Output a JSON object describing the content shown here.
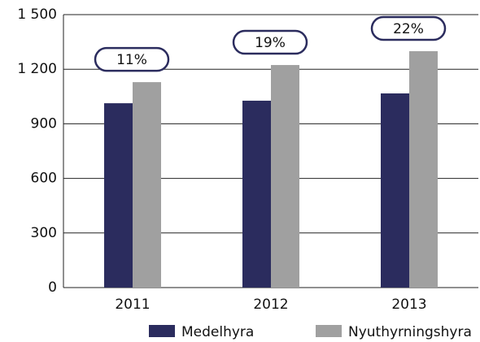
{
  "chart_data": {
    "type": "bar",
    "categories": [
      "2011",
      "2012",
      "2013"
    ],
    "series": [
      {
        "name": "Medelhyra",
        "color": "#2b2c5e",
        "values": [
          1013,
          1027,
          1067
        ]
      },
      {
        "name": "Nyuthyrningshyra",
        "color": "#a0a0a0",
        "values": [
          1129,
          1223,
          1299
        ]
      }
    ],
    "annotations": [
      "11%",
      "19%",
      "22%"
    ],
    "ylim": [
      0,
      1500
    ],
    "yticks": [
      0,
      300,
      600,
      900,
      {
        "value": 1200,
        "label": "1 200"
      },
      {
        "value": 1500,
        "label": "1 500"
      }
    ],
    "grid": true,
    "legend": "bottom"
  }
}
